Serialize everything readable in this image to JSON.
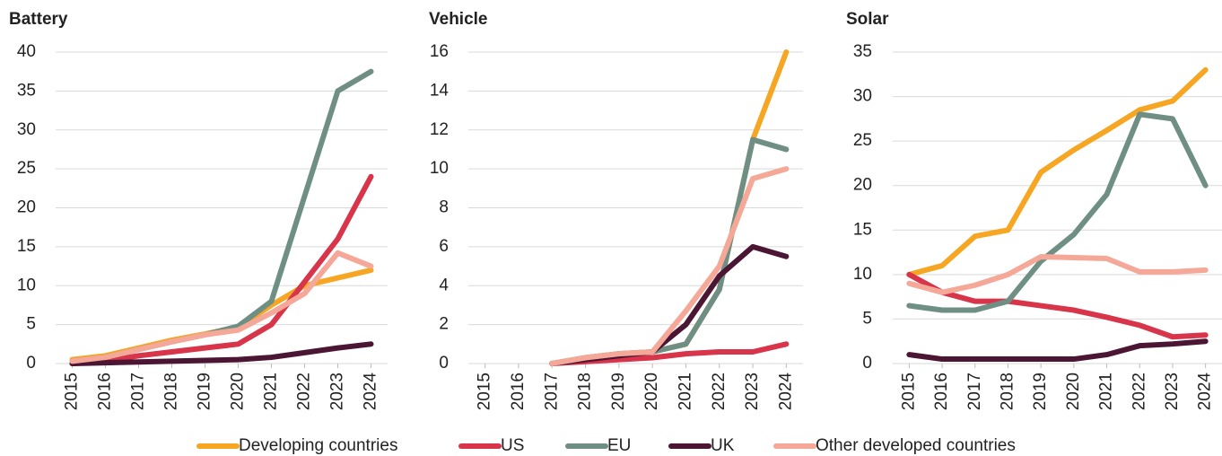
{
  "chart_data": [
    {
      "type": "line",
      "title": "Battery",
      "categories": [
        "2015",
        "2016",
        "2017",
        "2018",
        "2019",
        "2020",
        "2021",
        "2022",
        "2023",
        "2024"
      ],
      "ylim": [
        0,
        40
      ],
      "yticks": [
        0,
        5,
        10,
        15,
        20,
        25,
        30,
        35,
        40
      ],
      "grid": true,
      "series": [
        {
          "name": "Developing countries",
          "color": "#f6a623",
          "values": [
            0.5,
            1,
            2,
            3,
            3.8,
            4.7,
            7.5,
            10,
            11,
            12
          ]
        },
        {
          "name": "US",
          "color": "#d8344a",
          "values": [
            0,
            0.3,
            1,
            1.5,
            2,
            2.5,
            5,
            10.5,
            16,
            24
          ]
        },
        {
          "name": "EU",
          "color": "#6f8f84",
          "values": [
            0.3,
            0.8,
            1.8,
            2.8,
            3.7,
            4.8,
            8,
            21.5,
            35,
            37.5
          ]
        },
        {
          "name": "UK",
          "color": "#4a1634",
          "values": [
            0,
            0.1,
            0.2,
            0.3,
            0.4,
            0.5,
            0.8,
            1.4,
            2,
            2.5
          ]
        },
        {
          "name": "Other developed countries",
          "color": "#f5a898",
          "values": [
            0.3,
            0.8,
            1.8,
            2.8,
            3.7,
            4.3,
            6.5,
            9,
            14.2,
            12.5
          ]
        }
      ]
    },
    {
      "type": "line",
      "title": "Vehicle",
      "categories": [
        "2015",
        "2016",
        "2017",
        "2018",
        "2019",
        "2020",
        "2021",
        "2022",
        "2023",
        "2024"
      ],
      "ylim": [
        0,
        16
      ],
      "yticks": [
        0,
        2,
        4,
        6,
        8,
        10,
        12,
        14,
        16
      ],
      "grid": true,
      "series": [
        {
          "values": [
            null,
            null,
            0,
            0.3,
            0.5,
            0.6,
            1,
            3.8,
            11.5,
            16
          ]
        },
        {
          "values": [
            null,
            null,
            0,
            0.1,
            0.2,
            0.3,
            0.5,
            0.6,
            0.6,
            1
          ]
        },
        {
          "values": [
            null,
            null,
            0,
            0.3,
            0.5,
            0.6,
            1,
            3.8,
            11.5,
            11
          ]
        },
        {
          "values": [
            null,
            null,
            0,
            0.2,
            0.4,
            0.6,
            2,
            4.5,
            6,
            5.5
          ]
        },
        {
          "values": [
            null,
            null,
            0,
            0.3,
            0.5,
            0.6,
            2.7,
            5,
            9.5,
            10
          ]
        }
      ]
    },
    {
      "type": "line",
      "title": "Solar",
      "categories": [
        "2015",
        "2016",
        "2017",
        "2018",
        "2019",
        "2020",
        "2021",
        "2022",
        "2023",
        "2024"
      ],
      "ylim": [
        0,
        35
      ],
      "yticks": [
        0,
        5,
        10,
        15,
        20,
        25,
        30,
        35
      ],
      "grid": true,
      "series": [
        {
          "values": [
            10,
            11,
            14.3,
            15,
            21.5,
            24,
            26.2,
            28.5,
            29.5,
            33
          ]
        },
        {
          "values": [
            10,
            8,
            7,
            7,
            6.5,
            6,
            5.2,
            4.3,
            3,
            3.2
          ]
        },
        {
          "values": [
            6.5,
            6,
            6,
            7,
            11.5,
            14.5,
            19,
            28,
            27.5,
            20
          ]
        },
        {
          "values": [
            1,
            0.5,
            0.5,
            0.5,
            0.5,
            0.5,
            1,
            2,
            2.2,
            2.5
          ]
        },
        {
          "values": [
            9,
            8,
            8.8,
            10,
            12,
            11.9,
            11.8,
            10.3,
            10.3,
            10.5
          ]
        }
      ]
    }
  ]
}
